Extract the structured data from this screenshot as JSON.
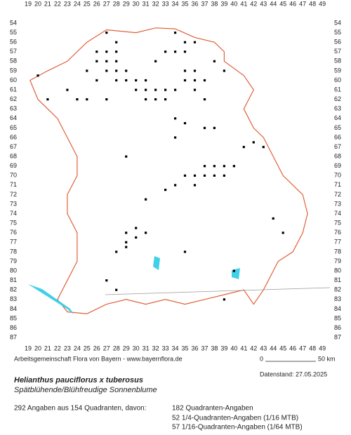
{
  "map": {
    "x_labels": [
      19,
      20,
      21,
      22,
      23,
      24,
      25,
      26,
      27,
      28,
      29,
      30,
      31,
      32,
      33,
      34,
      35,
      36,
      37,
      38,
      39,
      40,
      41,
      42,
      43,
      44,
      45,
      46,
      47,
      48,
      49
    ],
    "y_labels": [
      54,
      55,
      56,
      57,
      58,
      59,
      60,
      61,
      62,
      63,
      64,
      65,
      66,
      67,
      68,
      69,
      70,
      71,
      72,
      73,
      74,
      75,
      76,
      77,
      78,
      79,
      80,
      81,
      82,
      83,
      84,
      85,
      86,
      87
    ]
  },
  "credit": "Arbeitsgemeinschaft Flora von Bayern - www.bayernflora.de",
  "scale": {
    "start": "0",
    "end": "50 km"
  },
  "date": "Datenstand: 27.05.2025",
  "species": {
    "name": "Helianthus pauciflorus x tuberosus",
    "common": "Spätblühende/Blühfreudige Sonnenblume"
  },
  "summary": {
    "total": "292 Angaben aus 154 Quadranten, davon:",
    "lines": [
      "182 Quadranten-Angaben",
      "52 1/4-Quadranten-Angaben (1/16 MTB)",
      "57 1/16-Quadranten-Angaben (1/64 MTB)"
    ]
  }
}
